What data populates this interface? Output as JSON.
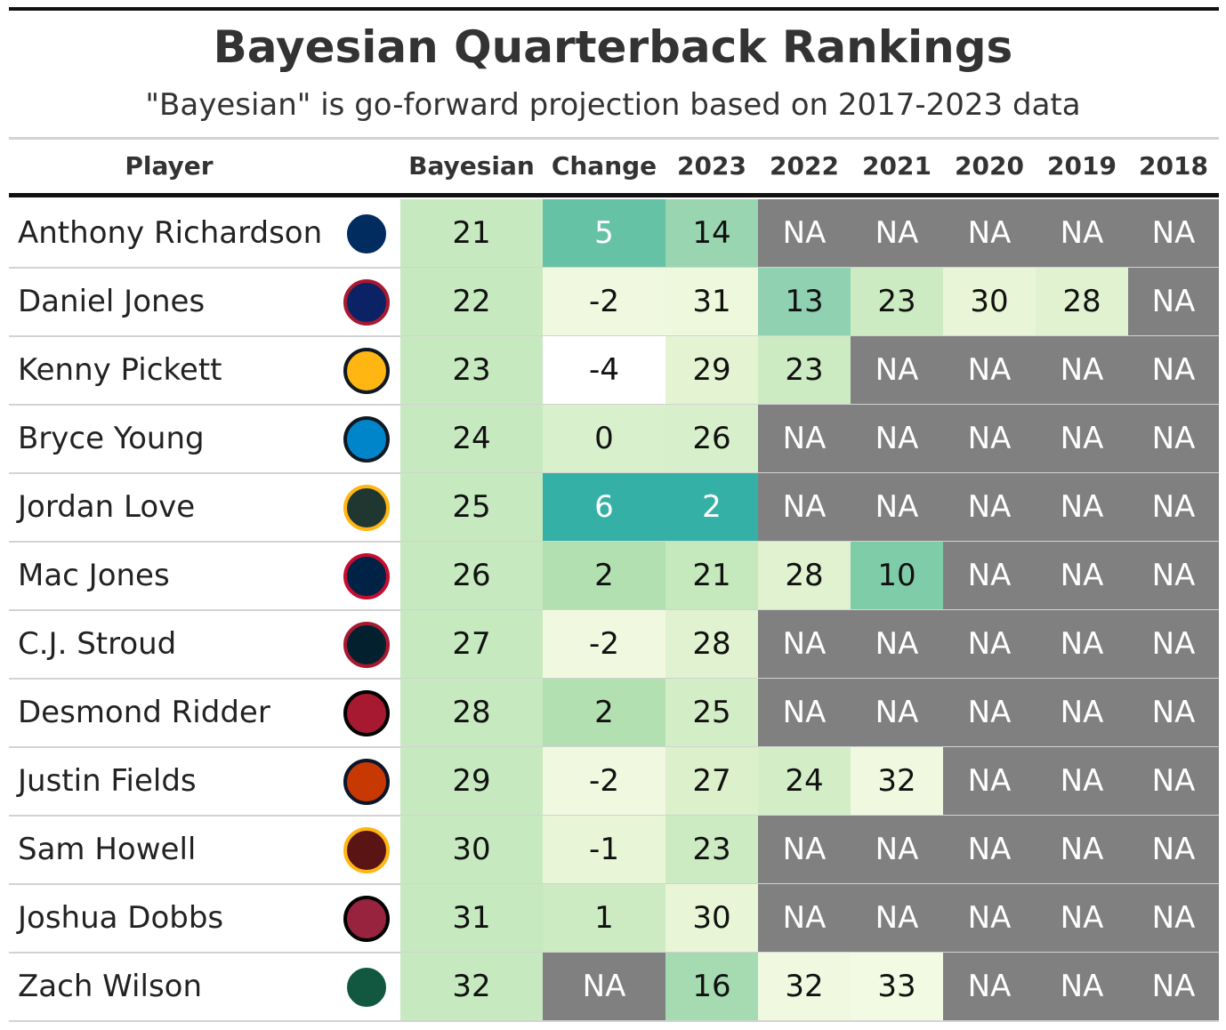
{
  "header": {
    "title": "Bayesian Quarterback Rankings",
    "subtitle": "\"Bayesian\" is go-forward projection based on 2017-2023 data"
  },
  "table": {
    "columns": [
      "Player",
      "Bayesian",
      "Change",
      "2023",
      "2022",
      "2021",
      "2020",
      "2019",
      "2018"
    ],
    "rows": [
      {
        "player": "Anthony Richardson",
        "values": [
          21,
          5,
          14,
          "NA",
          "NA",
          "NA",
          "NA",
          "NA"
        ],
        "colors": [
          "#c7e9c0",
          "#66c2a4",
          "#99d5b0",
          "#808080",
          "#808080",
          "#808080",
          "#808080",
          "#808080"
        ]
      },
      {
        "player": "Daniel Jones",
        "values": [
          22,
          -2,
          31,
          13,
          23,
          30,
          28,
          "NA"
        ],
        "colors": [
          "#c7e9c0",
          "#f0f9e0",
          "#eef8dd",
          "#8fd1b0",
          "#cdebc2",
          "#e8f5d6",
          "#e0f2cf",
          "#808080"
        ]
      },
      {
        "player": "Kenny Pickett",
        "values": [
          23,
          -4,
          29,
          23,
          "NA",
          "NA",
          "NA",
          "NA"
        ],
        "colors": [
          "#c7e9c0",
          "#ffffff",
          "#e4f4d3",
          "#cdebc2",
          "#808080",
          "#808080",
          "#808080",
          "#808080"
        ]
      },
      {
        "player": "Bryce Young",
        "values": [
          24,
          0,
          26,
          "NA",
          "NA",
          "NA",
          "NA",
          "NA"
        ],
        "colors": [
          "#c7e9c0",
          "#d9f0cc",
          "#d7efca",
          "#808080",
          "#808080",
          "#808080",
          "#808080",
          "#808080"
        ]
      },
      {
        "player": "Jordan Love",
        "values": [
          25,
          6,
          2,
          "NA",
          "NA",
          "NA",
          "NA",
          "NA"
        ],
        "colors": [
          "#c7e9c0",
          "#35b0a7",
          "#35b0a7",
          "#808080",
          "#808080",
          "#808080",
          "#808080",
          "#808080"
        ]
      },
      {
        "player": "Mac Jones",
        "values": [
          26,
          2,
          21,
          28,
          10,
          "NA",
          "NA",
          "NA"
        ],
        "colors": [
          "#c7e9c0",
          "#b3e0b0",
          "#c5e8bd",
          "#e0f2cf",
          "#7fcca8",
          "#808080",
          "#808080",
          "#808080"
        ]
      },
      {
        "player": "C.J. Stroud",
        "values": [
          27,
          -2,
          28,
          "NA",
          "NA",
          "NA",
          "NA",
          "NA"
        ],
        "colors": [
          "#c7e9c0",
          "#f0f9e0",
          "#e0f2cf",
          "#808080",
          "#808080",
          "#808080",
          "#808080",
          "#808080"
        ]
      },
      {
        "player": "Desmond Ridder",
        "values": [
          28,
          2,
          25,
          "NA",
          "NA",
          "NA",
          "NA",
          "NA"
        ],
        "colors": [
          "#c7e9c0",
          "#b3e0b0",
          "#d3eec7",
          "#808080",
          "#808080",
          "#808080",
          "#808080",
          "#808080"
        ]
      },
      {
        "player": "Justin Fields",
        "values": [
          29,
          -2,
          27,
          24,
          32,
          "NA",
          "NA",
          "NA"
        ],
        "colors": [
          "#c7e9c0",
          "#f0f9e0",
          "#dbf0cb",
          "#d3eec7",
          "#f0f9e0",
          "#808080",
          "#808080",
          "#808080"
        ]
      },
      {
        "player": "Sam Howell",
        "values": [
          30,
          -1,
          23,
          "NA",
          "NA",
          "NA",
          "NA",
          "NA"
        ],
        "colors": [
          "#c7e9c0",
          "#e8f5d6",
          "#cdebc2",
          "#808080",
          "#808080",
          "#808080",
          "#808080",
          "#808080"
        ]
      },
      {
        "player": "Joshua Dobbs",
        "values": [
          31,
          1,
          30,
          "NA",
          "NA",
          "NA",
          "NA",
          "NA"
        ],
        "colors": [
          "#c7e9c0",
          "#cdebc2",
          "#e8f5d6",
          "#808080",
          "#808080",
          "#808080",
          "#808080",
          "#808080"
        ]
      },
      {
        "player": "Zach Wilson",
        "values": [
          32,
          "NA",
          16,
          32,
          33,
          "NA",
          "NA",
          "NA"
        ],
        "colors": [
          "#c7e9c0",
          "#808080",
          "#a6dbb2",
          "#f0f9e0",
          "#f3fae4",
          "#808080",
          "#808080",
          "#808080"
        ]
      }
    ]
  }
}
